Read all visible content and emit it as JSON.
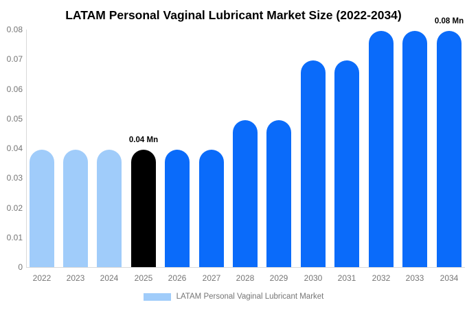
{
  "title": "LATAM Personal Vaginal Lubricant Market Size (2022-2034)",
  "legend": {
    "label": "LATAM Personal Vaginal Lubricant Market",
    "swatch_color": "#A0CCFA"
  },
  "colors": {
    "series_historical": "#A0CCFA",
    "series_base_year": "#000000",
    "series_forecast": "#0A6BFA",
    "axis_text": "#757575",
    "axis_line": "#D9D9D9",
    "title_text": "#000000",
    "background": "#FFFFFF"
  },
  "chart_data": {
    "type": "bar",
    "title": "LATAM Personal Vaginal Lubricant Market Size (2022-2034)",
    "xlabel": "",
    "ylabel": "",
    "unit": "Mn",
    "categories": [
      "2022",
      "2023",
      "2024",
      "2025",
      "2026",
      "2027",
      "2028",
      "2029",
      "2030",
      "2031",
      "2032",
      "2033",
      "2034"
    ],
    "values": [
      0.0395,
      0.0395,
      0.0395,
      0.0395,
      0.0395,
      0.0395,
      0.0495,
      0.0495,
      0.0695,
      0.0695,
      0.0795,
      0.0795,
      0.0795
    ],
    "bar_colors": [
      "#A0CCFA",
      "#A0CCFA",
      "#A0CCFA",
      "#000000",
      "#0A6BFA",
      "#0A6BFA",
      "#0A6BFA",
      "#0A6BFA",
      "#0A6BFA",
      "#0A6BFA",
      "#0A6BFA",
      "#0A6BFA",
      "#0A6BFA"
    ],
    "annotations": [
      {
        "category": "2025",
        "text": "0.04 Mn"
      },
      {
        "category": "2034",
        "text": "0.08 Mn"
      }
    ],
    "ylim": [
      0,
      0.08
    ],
    "ytick_labels": [
      "0",
      "0.01",
      "0.02",
      "0.03",
      "0.04",
      "0.05",
      "0.06",
      "0.07",
      "0.08"
    ],
    "grid": false,
    "legend_position": "bottom",
    "legend_entries": [
      "LATAM Personal Vaginal Lubricant Market"
    ]
  }
}
